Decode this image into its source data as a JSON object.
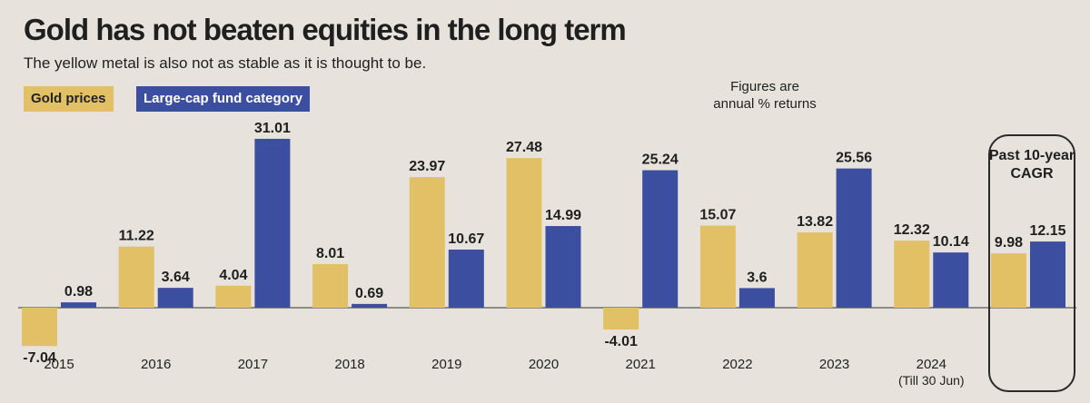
{
  "header": {
    "title": "Gold has not beaten equities in the long term",
    "subtitle": "The yellow metal is also not as stable as it is thought to be."
  },
  "legend": {
    "gold": "Gold prices",
    "blue": "Large-cap fund category"
  },
  "note": "Figures are annual % returns",
  "cagr_label": "Past 10-year CAGR",
  "colors": {
    "gold": "#e2c065",
    "blue": "#3b4ea0",
    "background": "#e7e3dc"
  },
  "chart_data": {
    "type": "bar",
    "title": "Gold has not beaten equities in the long term",
    "subtitle": "The yellow metal is also not as stable as it is thought to be.",
    "categories": [
      "2015",
      "2016",
      "2017",
      "2018",
      "2019",
      "2020",
      "2021",
      "2022",
      "2023",
      "2024",
      ""
    ],
    "category_sublabels": [
      "",
      "",
      "",
      "",
      "",
      "",
      "",
      "",
      "",
      "(Till 30 Jun)",
      ""
    ],
    "series": [
      {
        "name": "Gold prices",
        "values": [
          -7.04,
          11.22,
          4.04,
          8.01,
          23.97,
          27.48,
          -4.01,
          15.07,
          13.82,
          12.32,
          9.98
        ]
      },
      {
        "name": "Large-cap fund category",
        "values": [
          0.98,
          3.64,
          31.01,
          0.69,
          10.67,
          14.99,
          25.24,
          3.6,
          25.56,
          10.14,
          12.15
        ]
      }
    ],
    "labels": [
      [
        "-7.04",
        "11.22",
        "4.04",
        "8.01",
        "23.97",
        "27.48",
        "-4.01",
        "15.07",
        "13.82",
        "12.32",
        "9.98"
      ],
      [
        "0.98",
        "3.64",
        "31.01",
        "0.69",
        "10.67",
        "14.99",
        "25.24",
        "3.6",
        "25.56",
        "10.14",
        "12.15"
      ]
    ],
    "ylim": [
      -8,
      32
    ],
    "grid": false,
    "legend": "top-left"
  }
}
